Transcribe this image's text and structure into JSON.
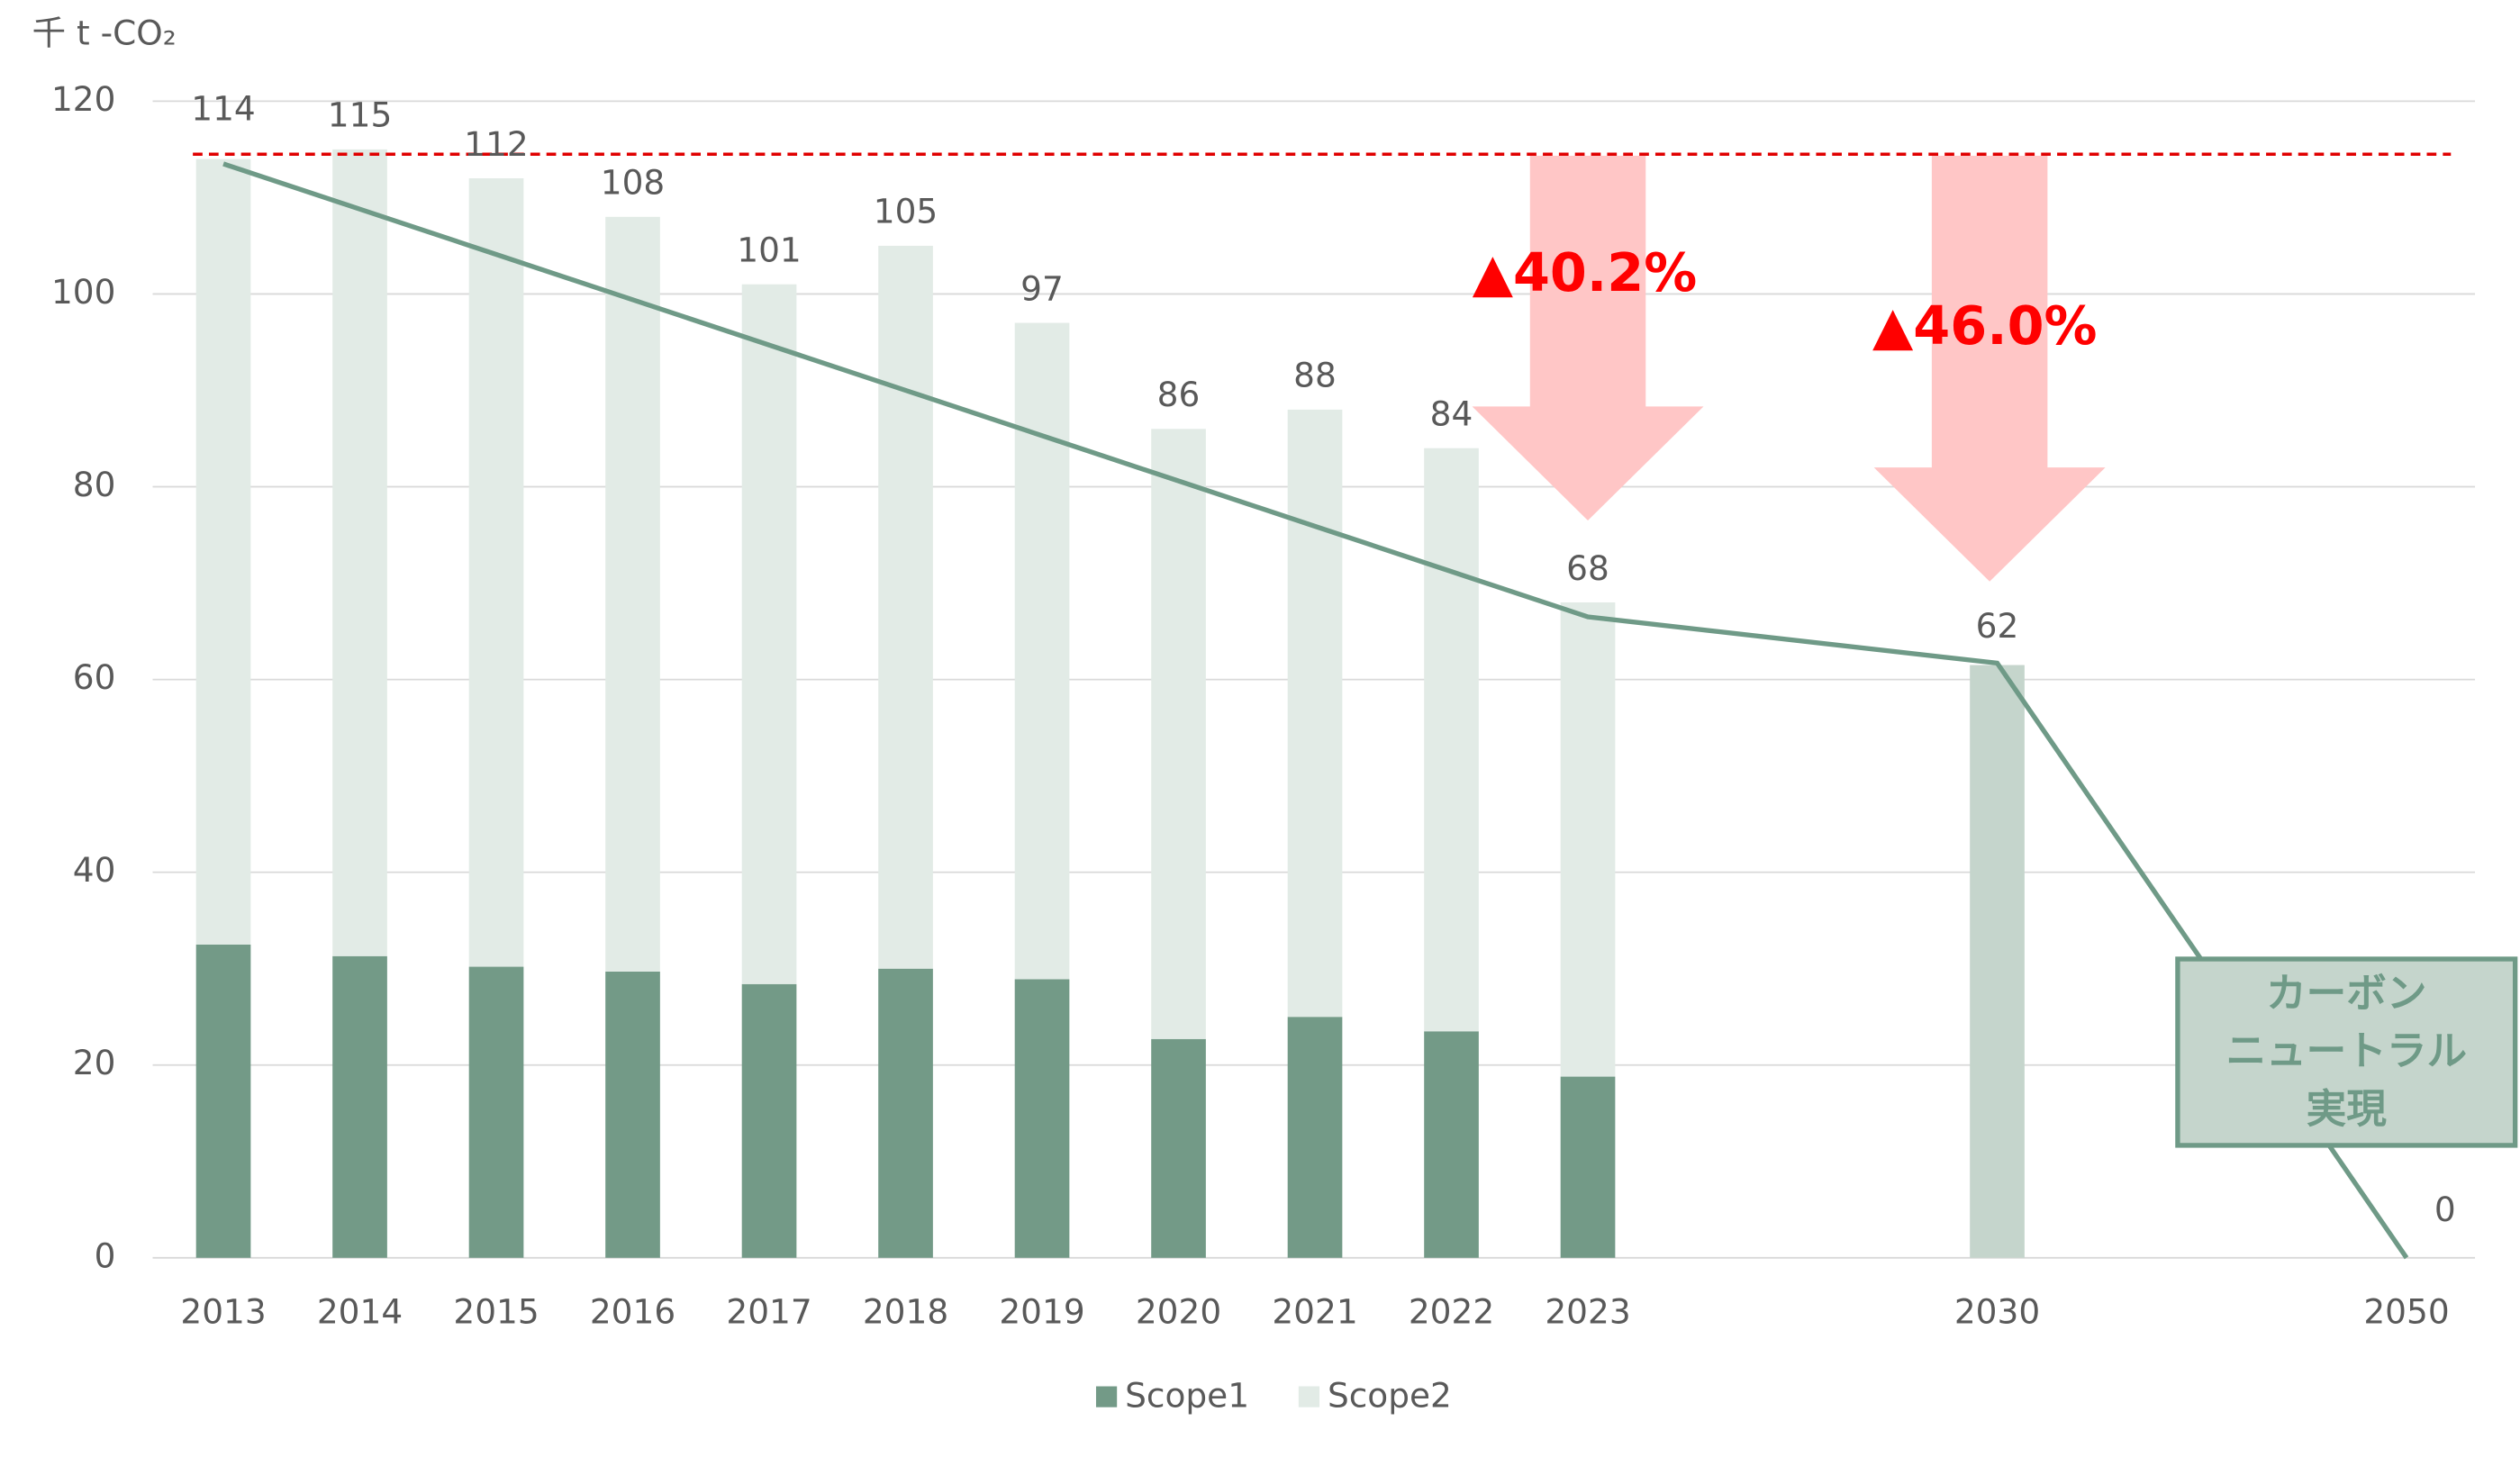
{
  "chart_data": {
    "type": "bar",
    "stacked": true,
    "y_axis_label": "千 t -CO₂",
    "categories": [
      "2013",
      "2014",
      "2015",
      "2016",
      "2017",
      "2018",
      "2019",
      "2020",
      "2021",
      "2022",
      "2023",
      "2030",
      "2050"
    ],
    "series": [
      {
        "name": "Scope1",
        "color": "#739a87",
        "values": [
          32.5,
          31.3,
          30.2,
          29.7,
          28.4,
          30,
          28.9,
          22.7,
          25,
          23.5,
          18.8,
          null,
          null
        ]
      },
      {
        "name": "Scope2",
        "color": "#e2ebe6",
        "values": [
          81.5,
          83.7,
          81.8,
          78.3,
          72.6,
          75,
          68.1,
          63.3,
          63,
          60.5,
          49.2,
          null,
          null
        ]
      },
      {
        "color": "#c5d5cc",
        "values": [
          null,
          null,
          null,
          null,
          null,
          null,
          null,
          null,
          null,
          null,
          null,
          61.5,
          null
        ]
      }
    ],
    "totals": [
      114,
      115,
      112,
      108,
      101,
      105,
      97,
      86,
      88,
      84,
      68,
      62,
      0
    ],
    "line": {
      "color": "#6f9a87",
      "values": [
        113.5,
        108.8,
        104.1,
        99.4,
        94.7,
        90,
        85.3,
        80.6,
        75.9,
        71.2,
        66.5,
        61.7,
        0
      ]
    },
    "reference_line": {
      "value": 114.5,
      "color": "#e00000"
    },
    "annotations": [
      "▲40.2%",
      "▲46.0%"
    ],
    "callout": [
      "カーボン",
      "ニュートラル",
      "実現"
    ],
    "ylim": [
      0,
      120
    ],
    "yticks": [
      0,
      20,
      40,
      60,
      80,
      100,
      120
    ],
    "grid": true,
    "legend": "bottom"
  }
}
